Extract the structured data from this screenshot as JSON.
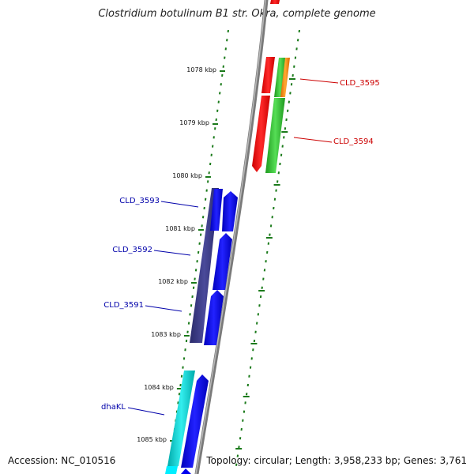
{
  "title": "Clostridium botulinum B1 str. Okra, complete genome",
  "footer": {
    "accession": "Accession: NC_010516",
    "summary": "Topology: circular; Length: 3,958,233 bp; Genes: 3,761"
  },
  "ruler_labels": [
    "1078 kbp",
    "1079 kbp",
    "1080 kbp",
    "1081 kbp",
    "1082 kbp",
    "1083 kbp",
    "1084 kbp",
    "1085 kbp"
  ],
  "gene_labels": {
    "right": [
      "CLD_3595",
      "CLD_3594"
    ],
    "left": [
      "CLD_3593",
      "CLD_3592",
      "CLD_3591",
      "dhaKL"
    ]
  },
  "colors": {
    "backbone": "#8a8a8a",
    "tick": "#1a7a1a",
    "label_red": "#cc0000",
    "label_blue": "#0000aa",
    "red": "#ff0000",
    "green": "#33cc33",
    "orange": "#ff8800",
    "blue": "#0000ee",
    "navy": "#3a3a8a",
    "cyan": "#00cccc"
  }
}
